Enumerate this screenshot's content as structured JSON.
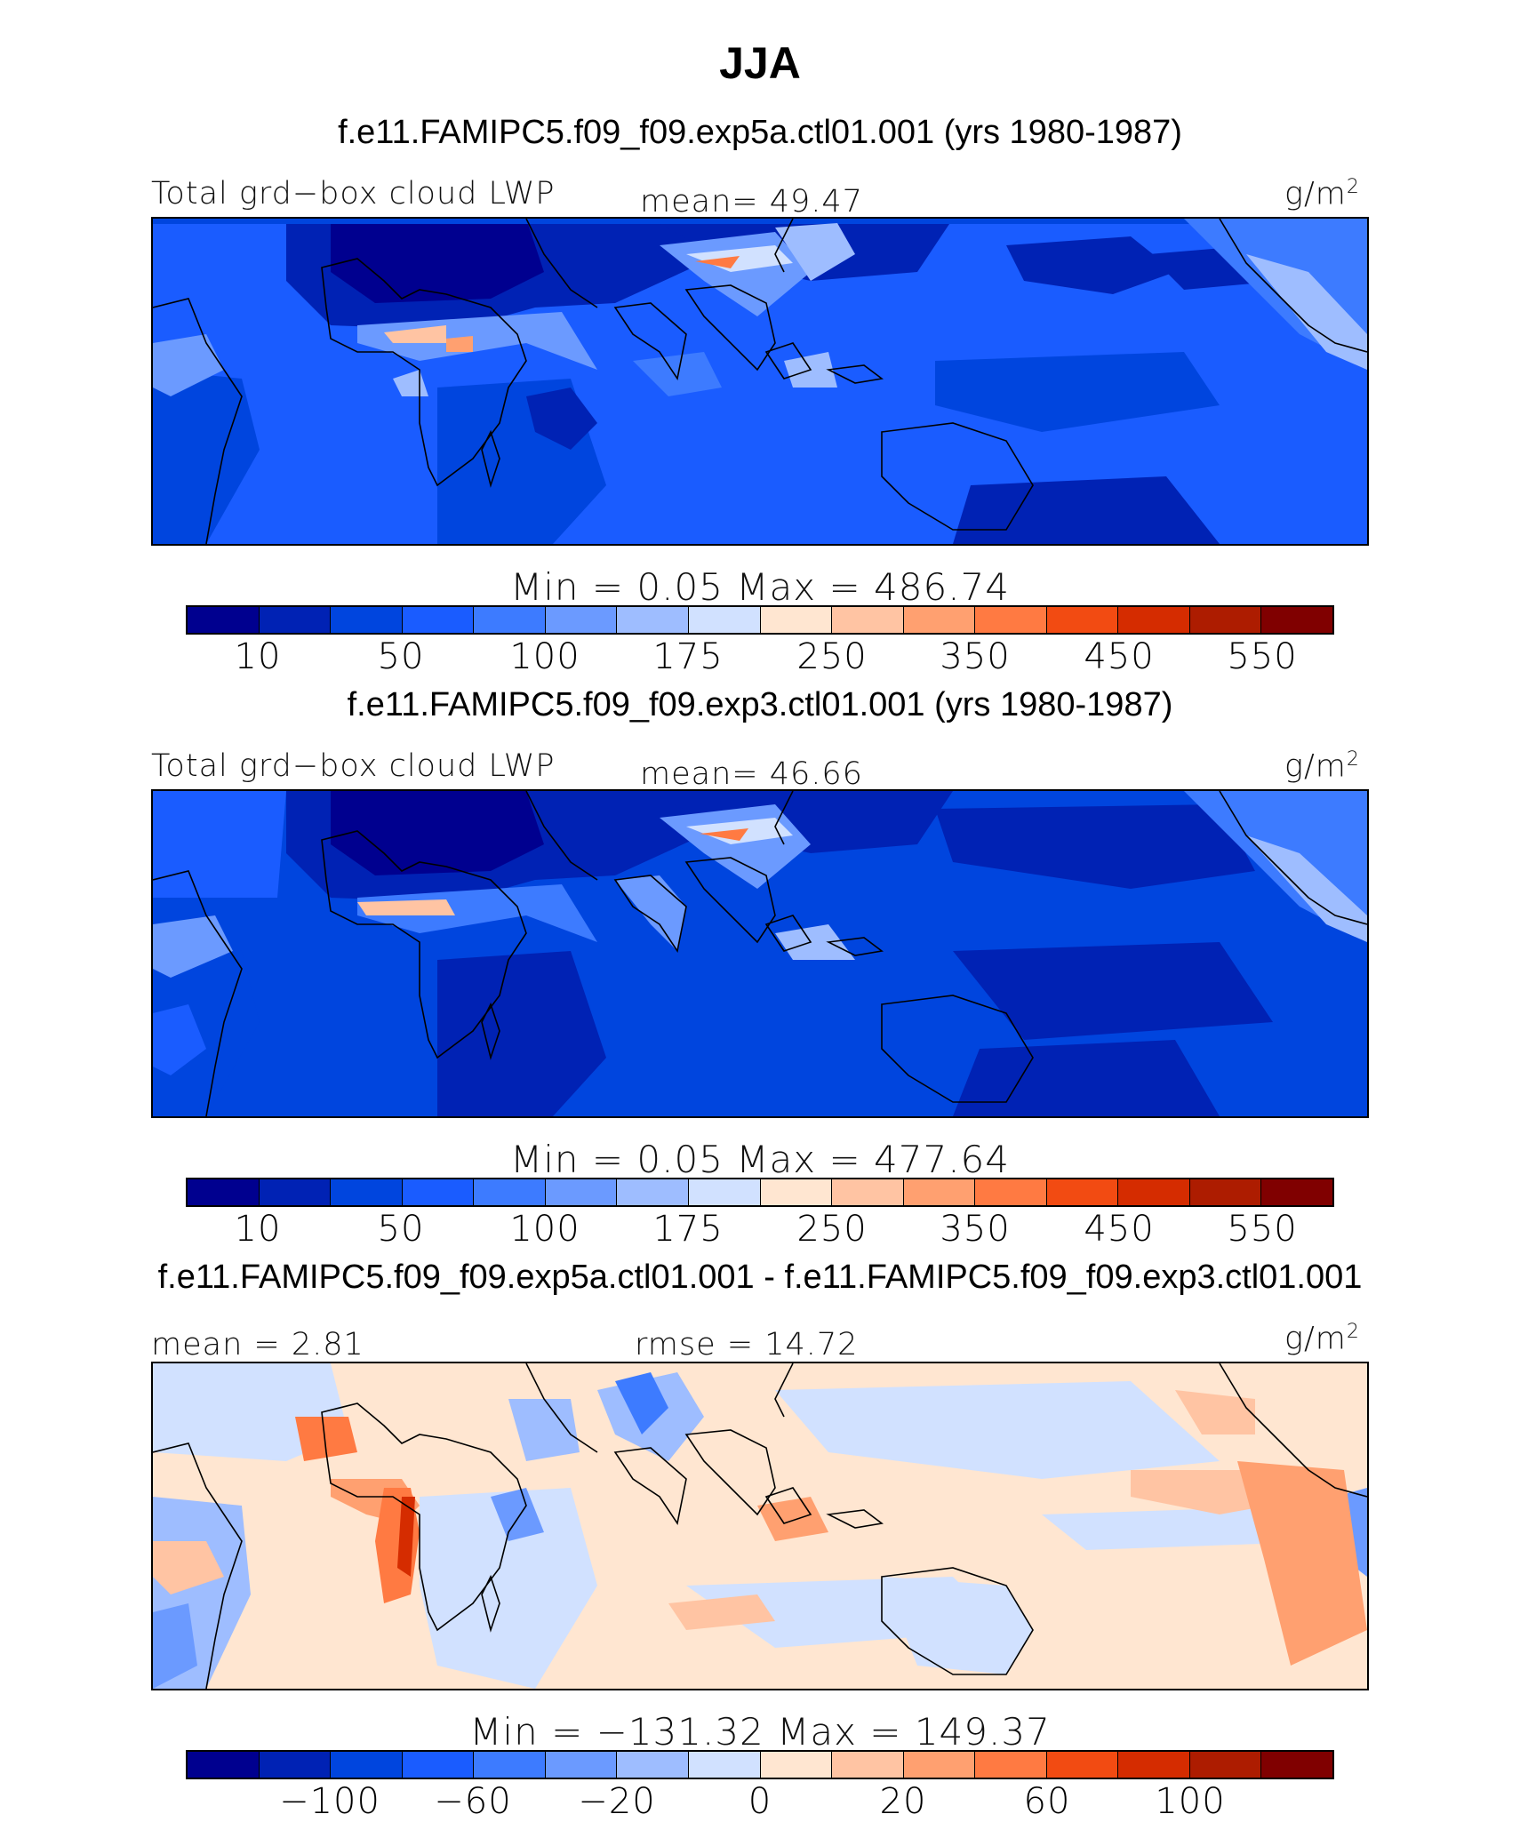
{
  "title": "JJA",
  "panels": [
    {
      "case_title": "f.e11.FAMIPC5.f09_f09.exp5a.ctl01.001 (yrs 1980-1987)",
      "left_label": "Total grd−box cloud LWP",
      "center_label": "mean=  49.47",
      "units_base": "g/m",
      "units_exp": "2",
      "minmax": "Min  =    0.05  Max  =  486.74",
      "map_name": "total-gridbox-cloud-lwp-map"
    },
    {
      "case_title": "f.e11.FAMIPC5.f09_f09.exp3.ctl01.001 (yrs 1980-1987)",
      "left_label": "Total grd−box cloud LWP",
      "center_label": "mean=  46.66",
      "units_base": "g/m",
      "units_exp": "2",
      "minmax": "Min  =    0.05  Max  =  477.64",
      "map_name": "total-gridbox-cloud-lwp-map"
    },
    {
      "case_title": "f.e11.FAMIPC5.f09_f09.exp5a.ctl01.001 - f.e11.FAMIPC5.f09_f09.exp3.ctl01.001",
      "left_label": "mean =   2.81",
      "center_label": "rmse =   14.72",
      "units_base": "g/m",
      "units_exp": "2",
      "minmax": "Min  = −131.32  Max  =  149.37",
      "map_name": "difference-map"
    }
  ],
  "colorbar_abs": {
    "colors": [
      "#00008f",
      "#0022b4",
      "#0045de",
      "#1a5cff",
      "#3d7bff",
      "#6b9aff",
      "#9ebdff",
      "#d1e1ff",
      "#ffe6d1",
      "#ffc4a3",
      "#ffa070",
      "#ff7a42",
      "#f24b12",
      "#d52c00",
      "#ad1c00",
      "#800000"
    ],
    "labels": [
      "10",
      "50",
      "100",
      "175",
      "250",
      "350",
      "450",
      "550"
    ]
  },
  "colorbar_diff": {
    "colors": [
      "#00008f",
      "#0022b4",
      "#0045de",
      "#1a5cff",
      "#3d7bff",
      "#6b9aff",
      "#9ebdff",
      "#d1e1ff",
      "#ffe6d1",
      "#ffc4a3",
      "#ffa070",
      "#ff7a42",
      "#f24b12",
      "#d52c00",
      "#ad1c00",
      "#800000"
    ],
    "labels": [
      "−100",
      "−60",
      "−20",
      "0",
      "20",
      "60",
      "100"
    ]
  }
}
